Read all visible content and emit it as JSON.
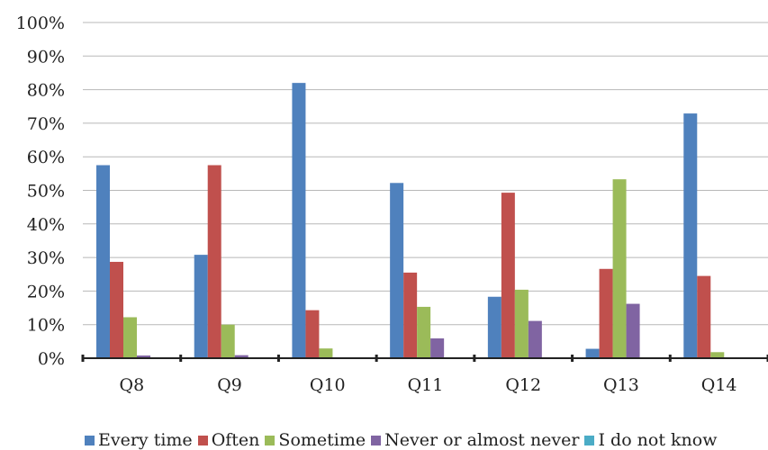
{
  "chart_data": {
    "type": "bar",
    "title": "",
    "xlabel": "",
    "ylabel": "",
    "categories": [
      "Q8",
      "Q9",
      "Q10",
      "Q11",
      "Q12",
      "Q13",
      "Q14"
    ],
    "ylim": [
      0,
      100
    ],
    "y_ticks": [
      "0%",
      "10%",
      "20%",
      "30%",
      "40%",
      "50%",
      "60%",
      "70%",
      "80%",
      "90%",
      "100%"
    ],
    "y_unit": "%",
    "grid": true,
    "legend_position": "bottom",
    "series": [
      {
        "name": "Every time",
        "color": "#4f81bd",
        "values": [
          57.5,
          30.8,
          82.0,
          52.2,
          18.3,
          2.8,
          72.9
        ]
      },
      {
        "name": "Often",
        "color": "#c0504d",
        "values": [
          28.7,
          57.5,
          14.3,
          25.5,
          49.3,
          26.6,
          24.5
        ]
      },
      {
        "name": "Sometime",
        "color": "#9bbb59",
        "values": [
          12.2,
          10.0,
          2.9,
          15.3,
          20.4,
          53.3,
          1.8
        ]
      },
      {
        "name": "Never or almost never",
        "color": "#8064a2",
        "values": [
          0.8,
          0.9,
          0.0,
          5.9,
          11.1,
          16.2,
          0.0
        ]
      },
      {
        "name": "I do not know",
        "color": "#4bacc6",
        "values": [
          0,
          0,
          0,
          0,
          0,
          0,
          0
        ]
      }
    ]
  }
}
